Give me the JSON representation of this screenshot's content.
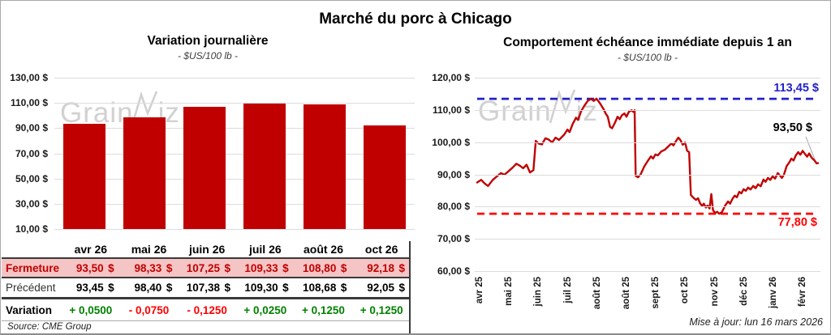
{
  "header": {
    "title": "Marché du porc à Chicago"
  },
  "watermark": {
    "part1": "Grain",
    "part2": "iz"
  },
  "footer": {
    "source": "Source: CME Group",
    "updated": "Mise à jour: lun 16 mars 2026"
  },
  "colors": {
    "bar": "#C00000",
    "line": "#C00000",
    "resistance": "#2222CC",
    "support": "#FF0000",
    "positive": "#008000",
    "negative": "#FF0000",
    "fermeture_bg": "#F5C4C4",
    "fermeture_text": "#C00000",
    "gridline": "#DCDCDC"
  },
  "chart_data": [
    {
      "type": "bar",
      "title": "Variation journalière",
      "subtitle": "- $US/100 lb -",
      "ylabel": "$US/100 lb",
      "categories": [
        "avr 26",
        "mai 26",
        "juin 26",
        "juil 26",
        "août 26",
        "oct 26"
      ],
      "values": [
        93.5,
        98.33,
        107.25,
        109.33,
        108.8,
        92.18
      ],
      "ylim": [
        10,
        130
      ],
      "y_ticks": [
        {
          "value": 130,
          "label": "130,00 $"
        },
        {
          "value": 110,
          "label": "110,00 $"
        },
        {
          "value": 90,
          "label": "90,00 $"
        },
        {
          "value": 70,
          "label": "70,00 $"
        },
        {
          "value": 50,
          "label": "50,00 $"
        },
        {
          "value": 30,
          "label": "30,00 $"
        },
        {
          "value": 10,
          "label": "10,00 $"
        }
      ],
      "grid": true,
      "legend": "none"
    },
    {
      "type": "line",
      "title": "Comportement échéance immédiate depuis 1 an",
      "subtitle": "- $US/100 lb -",
      "ylabel": "$US/100 lb",
      "ylim": [
        60,
        120
      ],
      "y_ticks": [
        {
          "value": 120,
          "label": "120,00 $"
        },
        {
          "value": 110,
          "label": "110,00 $"
        },
        {
          "value": 100,
          "label": "100,00 $"
        },
        {
          "value": 90,
          "label": "90,00 $"
        },
        {
          "value": 80,
          "label": "80,00 $"
        },
        {
          "value": 70,
          "label": "70,00 $"
        },
        {
          "value": 60,
          "label": "60,00 $"
        }
      ],
      "x_ticks": [
        "avr 25",
        "mai 25",
        "juin 25",
        "juil 25",
        "août 25",
        "août 25",
        "sept 25",
        "oct 25",
        "nov 25",
        "déc 25",
        "janv 26",
        "févr 26"
      ],
      "annotations": {
        "resistance": {
          "value": 113.45,
          "label": "113,45 $"
        },
        "support": {
          "value": 77.8,
          "label": "77,80 $"
        },
        "last": {
          "value": 93.5,
          "label": "93,50 $"
        }
      },
      "grid": true,
      "legend": "none",
      "points": [
        [
          0,
          87.5
        ],
        [
          1.2,
          88.3
        ],
        [
          2.2,
          87.2
        ],
        [
          3.2,
          86.4
        ],
        [
          4.5,
          88.2
        ],
        [
          6,
          89.6
        ],
        [
          7,
          90.4
        ],
        [
          8,
          89.9
        ],
        [
          9,
          90.8
        ],
        [
          10.5,
          92.2
        ],
        [
          11.5,
          93.3
        ],
        [
          12.5,
          92.7
        ],
        [
          13.5,
          91.9
        ],
        [
          14.5,
          93.0
        ],
        [
          15.5,
          90.6
        ],
        [
          16.5,
          91.3
        ],
        [
          17.2,
          100.4
        ],
        [
          18,
          99.6
        ],
        [
          19,
          99.3
        ],
        [
          20,
          101.2
        ],
        [
          21,
          100.8
        ],
        [
          22,
          99.9
        ],
        [
          23,
          101.4
        ],
        [
          24,
          100.7
        ],
        [
          25.5,
          102.3
        ],
        [
          26.5,
          103.9
        ],
        [
          27.1,
          103.1
        ],
        [
          28,
          105.6
        ],
        [
          29,
          107.6
        ],
        [
          29.6,
          106.9
        ],
        [
          30.5,
          109.6
        ],
        [
          31.5,
          111.4
        ],
        [
          32.5,
          112.9
        ],
        [
          33.5,
          113.4
        ],
        [
          34.2,
          112.8
        ],
        [
          35,
          113.5
        ],
        [
          36,
          112.1
        ],
        [
          37,
          110.4
        ],
        [
          37.7,
          108.9
        ],
        [
          38.3,
          107.9
        ],
        [
          39,
          104.7
        ],
        [
          39.6,
          104.3
        ],
        [
          40.5,
          106.2
        ],
        [
          41.2,
          107.9
        ],
        [
          41.8,
          107.1
        ],
        [
          42.5,
          108.4
        ],
        [
          43.2,
          108.9
        ],
        [
          43.8,
          107.9
        ],
        [
          44.5,
          109.4
        ],
        [
          45.3,
          109.9
        ],
        [
          45.8,
          109.4
        ],
        [
          46.2,
          109.9
        ],
        [
          46.5,
          89.6
        ],
        [
          47.2,
          89.1
        ],
        [
          48,
          90.1
        ],
        [
          49,
          92.4
        ],
        [
          50,
          94.1
        ],
        [
          51,
          95.6
        ],
        [
          51.6,
          94.9
        ],
        [
          52.3,
          96.2
        ],
        [
          53,
          95.9
        ],
        [
          54,
          97.1
        ],
        [
          55,
          97.6
        ],
        [
          56,
          98.6
        ],
        [
          57,
          99.6
        ],
        [
          57.6,
          99.0
        ],
        [
          58.3,
          100.3
        ],
        [
          59,
          101.4
        ],
        [
          59.6,
          100.7
        ],
        [
          60.3,
          99.2
        ],
        [
          61,
          99.9
        ],
        [
          61.6,
          97.3
        ],
        [
          62.2,
          96.9
        ],
        [
          62.7,
          83.6
        ],
        [
          63.5,
          82.7
        ],
        [
          64.2,
          82.1
        ],
        [
          64.8,
          82.6
        ],
        [
          65.4,
          81.0
        ],
        [
          66,
          80.2
        ],
        [
          66.5,
          80.9
        ],
        [
          67.1,
          79.7
        ],
        [
          67.6,
          80.3
        ],
        [
          68.2,
          79.4
        ],
        [
          68.7,
          83.9
        ],
        [
          69.2,
          78.9
        ],
        [
          69.8,
          78.0
        ],
        [
          70.4,
          78.4
        ],
        [
          71,
          77.8
        ],
        [
          71.8,
          78.3
        ],
        [
          72.8,
          80.4
        ],
        [
          73.6,
          81.6
        ],
        [
          74.2,
          80.9
        ],
        [
          75,
          82.6
        ],
        [
          75.6,
          83.4
        ],
        [
          76.2,
          82.9
        ],
        [
          76.9,
          84.6
        ],
        [
          77.5,
          84.1
        ],
        [
          78.2,
          85.4
        ],
        [
          78.8,
          84.9
        ],
        [
          79.5,
          85.9
        ],
        [
          80.2,
          85.3
        ],
        [
          81,
          86.4
        ],
        [
          81.7,
          85.7
        ],
        [
          82.4,
          86.9
        ],
        [
          83.2,
          86.3
        ],
        [
          84,
          88.4
        ],
        [
          84.6,
          87.7
        ],
        [
          85.3,
          88.9
        ],
        [
          86,
          88.3
        ],
        [
          86.7,
          89.4
        ],
        [
          87.4,
          88.7
        ],
        [
          88.2,
          90.4
        ],
        [
          88.8,
          89.7
        ],
        [
          89.4,
          88.9
        ],
        [
          90,
          89.9
        ],
        [
          90.8,
          92.6
        ],
        [
          91.5,
          93.6
        ],
        [
          92.2,
          94.9
        ],
        [
          92.8,
          94.3
        ],
        [
          93.5,
          95.9
        ],
        [
          94.2,
          96.9
        ],
        [
          94.8,
          96.1
        ],
        [
          95.5,
          97.3
        ],
        [
          96.2,
          96.3
        ],
        [
          96.8,
          95.5
        ],
        [
          97.4,
          96.5
        ],
        [
          98.2,
          95.1
        ],
        [
          99,
          94.3
        ],
        [
          99.6,
          93.4
        ],
        [
          100,
          93.5
        ]
      ]
    }
  ],
  "table": {
    "months": [
      "avr 26",
      "mai 26",
      "juin 26",
      "juil 26",
      "août 26",
      "oct 26"
    ],
    "rows": [
      {
        "label": "Fermeture",
        "type": "fermeture",
        "values": [
          "93,50 $",
          "98,33 $",
          "107,25 $",
          "109,33 $",
          "108,80 $",
          "92,18 $"
        ]
      },
      {
        "label": "Précédent",
        "type": "precedent",
        "values": [
          "93,45 $",
          "98,40 $",
          "107,38 $",
          "109,30 $",
          "108,68 $",
          "92,05 $"
        ]
      },
      {
        "label": "Variation",
        "type": "variation",
        "values": [
          {
            "text": "+ 0,0500",
            "sign": "pos"
          },
          {
            "text": "- 0,0750",
            "sign": "neg"
          },
          {
            "text": "- 0,1250",
            "sign": "neg"
          },
          {
            "text": "+ 0,0250",
            "sign": "pos"
          },
          {
            "text": "+ 0,1250",
            "sign": "pos"
          },
          {
            "text": "+ 0,1250",
            "sign": "pos"
          }
        ]
      }
    ]
  }
}
